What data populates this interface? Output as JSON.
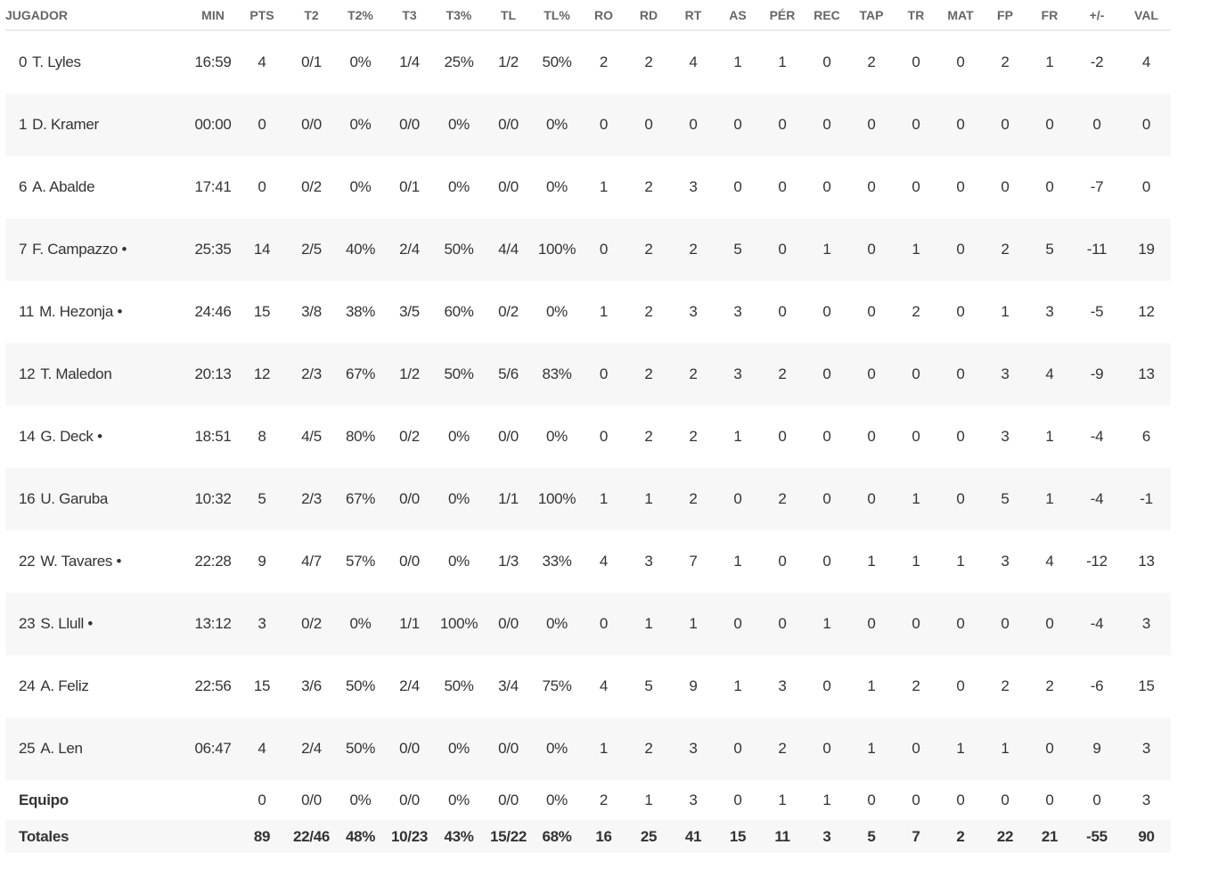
{
  "columns": [
    "JUGADOR",
    "MIN",
    "PTS",
    "T2",
    "T2%",
    "T3",
    "T3%",
    "TL",
    "TL%",
    "RO",
    "RD",
    "RT",
    "AS",
    "PÉR",
    "REC",
    "TAP",
    "TR",
    "MAT",
    "FP",
    "FR",
    "+/-",
    "VAL"
  ],
  "starter_marker": "•",
  "players": [
    {
      "number": "0",
      "name": "T. Lyles",
      "starter": false,
      "stats": [
        "16:59",
        "4",
        "0/1",
        "0%",
        "1/4",
        "25%",
        "1/2",
        "50%",
        "2",
        "2",
        "4",
        "1",
        "1",
        "0",
        "2",
        "0",
        "0",
        "2",
        "1",
        "-2",
        "4"
      ]
    },
    {
      "number": "1",
      "name": "D. Kramer",
      "starter": false,
      "stats": [
        "00:00",
        "0",
        "0/0",
        "0%",
        "0/0",
        "0%",
        "0/0",
        "0%",
        "0",
        "0",
        "0",
        "0",
        "0",
        "0",
        "0",
        "0",
        "0",
        "0",
        "0",
        "0",
        "0"
      ]
    },
    {
      "number": "6",
      "name": "A. Abalde",
      "starter": false,
      "stats": [
        "17:41",
        "0",
        "0/2",
        "0%",
        "0/1",
        "0%",
        "0/0",
        "0%",
        "1",
        "2",
        "3",
        "0",
        "0",
        "0",
        "0",
        "0",
        "0",
        "0",
        "0",
        "-7",
        "0"
      ]
    },
    {
      "number": "7",
      "name": "F. Campazzo",
      "starter": true,
      "stats": [
        "25:35",
        "14",
        "2/5",
        "40%",
        "2/4",
        "50%",
        "4/4",
        "100%",
        "0",
        "2",
        "2",
        "5",
        "0",
        "1",
        "0",
        "1",
        "0",
        "2",
        "5",
        "-11",
        "19"
      ]
    },
    {
      "number": "11",
      "name": "M. Hezonja",
      "starter": true,
      "stats": [
        "24:46",
        "15",
        "3/8",
        "38%",
        "3/5",
        "60%",
        "0/2",
        "0%",
        "1",
        "2",
        "3",
        "3",
        "0",
        "0",
        "0",
        "2",
        "0",
        "1",
        "3",
        "-5",
        "12"
      ]
    },
    {
      "number": "12",
      "name": "T. Maledon",
      "starter": false,
      "stats": [
        "20:13",
        "12",
        "2/3",
        "67%",
        "1/2",
        "50%",
        "5/6",
        "83%",
        "0",
        "2",
        "2",
        "3",
        "2",
        "0",
        "0",
        "0",
        "0",
        "3",
        "4",
        "-9",
        "13"
      ]
    },
    {
      "number": "14",
      "name": "G. Deck",
      "starter": true,
      "stats": [
        "18:51",
        "8",
        "4/5",
        "80%",
        "0/2",
        "0%",
        "0/0",
        "0%",
        "0",
        "2",
        "2",
        "1",
        "0",
        "0",
        "0",
        "0",
        "0",
        "3",
        "1",
        "-4",
        "6"
      ]
    },
    {
      "number": "16",
      "name": "U. Garuba",
      "starter": false,
      "stats": [
        "10:32",
        "5",
        "2/3",
        "67%",
        "0/0",
        "0%",
        "1/1",
        "100%",
        "1",
        "1",
        "2",
        "0",
        "2",
        "0",
        "0",
        "1",
        "0",
        "5",
        "1",
        "-4",
        "-1"
      ]
    },
    {
      "number": "22",
      "name": "W. Tavares",
      "starter": true,
      "stats": [
        "22:28",
        "9",
        "4/7",
        "57%",
        "0/0",
        "0%",
        "1/3",
        "33%",
        "4",
        "3",
        "7",
        "1",
        "0",
        "0",
        "1",
        "1",
        "1",
        "3",
        "4",
        "-12",
        "13"
      ]
    },
    {
      "number": "23",
      "name": "S. Llull",
      "starter": true,
      "stats": [
        "13:12",
        "3",
        "0/2",
        "0%",
        "1/1",
        "100%",
        "0/0",
        "0%",
        "0",
        "1",
        "1",
        "0",
        "0",
        "1",
        "0",
        "0",
        "0",
        "0",
        "0",
        "-4",
        "3"
      ]
    },
    {
      "number": "24",
      "name": "A. Feliz",
      "starter": false,
      "stats": [
        "22:56",
        "15",
        "3/6",
        "50%",
        "2/4",
        "50%",
        "3/4",
        "75%",
        "4",
        "5",
        "9",
        "1",
        "3",
        "0",
        "1",
        "2",
        "0",
        "2",
        "2",
        "-6",
        "15"
      ]
    },
    {
      "number": "25",
      "name": "A. Len",
      "starter": false,
      "stats": [
        "06:47",
        "4",
        "2/4",
        "50%",
        "0/0",
        "0%",
        "0/0",
        "0%",
        "1",
        "2",
        "3",
        "0",
        "2",
        "0",
        "1",
        "0",
        "1",
        "1",
        "0",
        "9",
        "3"
      ]
    }
  ],
  "team": {
    "label": "Equipo",
    "stats": [
      "",
      "0",
      "0/0",
      "0%",
      "0/0",
      "0%",
      "0/0",
      "0%",
      "2",
      "1",
      "3",
      "0",
      "1",
      "1",
      "0",
      "0",
      "0",
      "0",
      "0",
      "0",
      "3"
    ]
  },
  "totals": {
    "label": "Totales",
    "stats": [
      "",
      "89",
      "22/46",
      "48%",
      "10/23",
      "43%",
      "15/22",
      "68%",
      "16",
      "25",
      "41",
      "15",
      "11",
      "3",
      "5",
      "7",
      "2",
      "22",
      "21",
      "-55",
      "90"
    ]
  }
}
